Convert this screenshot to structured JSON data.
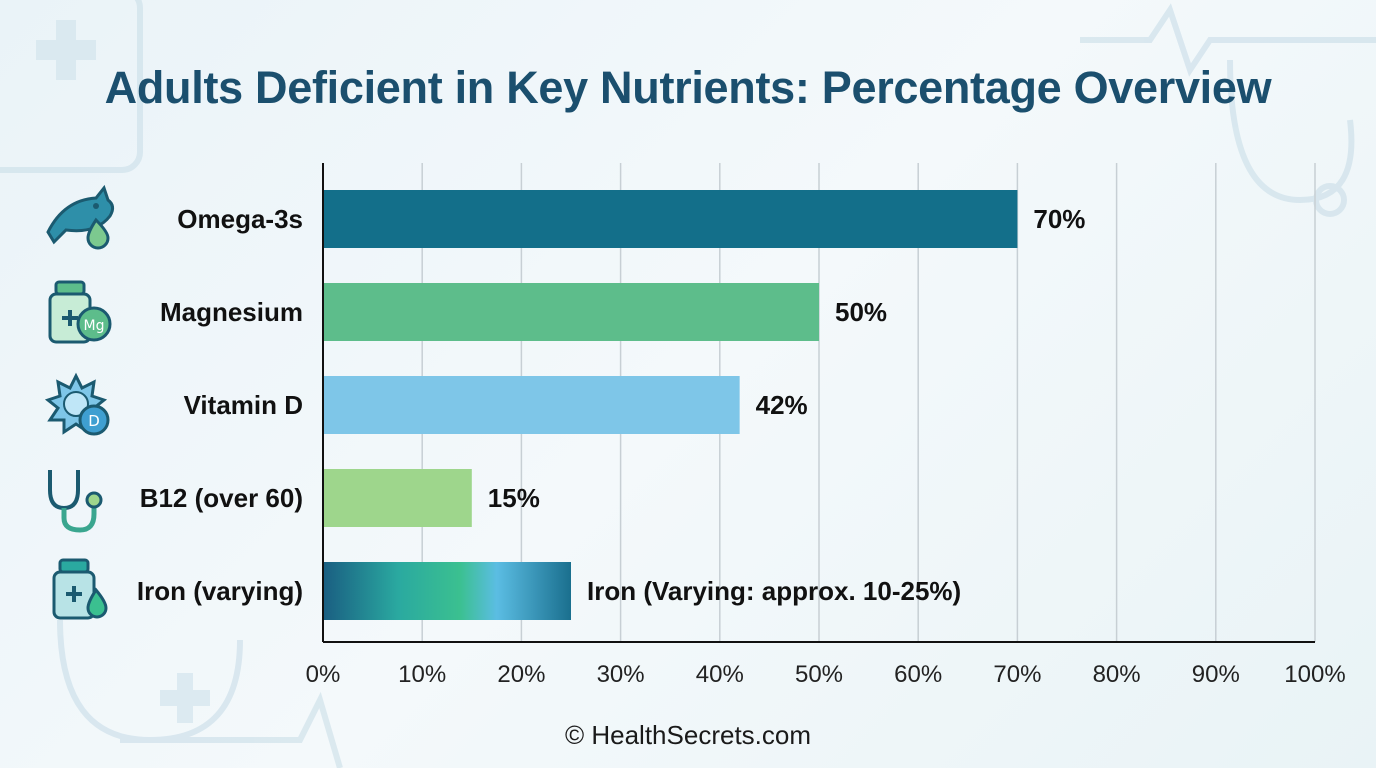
{
  "colors": {
    "title": "#1b4f6e",
    "omega": "#136f8a",
    "magnesium": "#5dbd8b",
    "vitamin_d": "#7ec6e8",
    "b12": "#9ed68c",
    "iron_gradient": [
      "#1a5f82",
      "#2aa9a0",
      "#3bc090",
      "#5bbde3",
      "#1a6f8e"
    ]
  },
  "chart_data": {
    "type": "bar",
    "orientation": "horizontal",
    "title": "Adults Deficient in Key Nutrients: Percentage Overview",
    "xlim": [
      0,
      100
    ],
    "x_ticks": [
      0,
      10,
      20,
      30,
      40,
      50,
      60,
      70,
      80,
      90,
      100
    ],
    "x_tick_labels": [
      "0%",
      "10%",
      "20%",
      "30%",
      "40%",
      "50%",
      "60%",
      "70%",
      "80%",
      "90%",
      "100%"
    ],
    "grid": true,
    "categories": [
      "Omega-3s",
      "Magnesium",
      "Vitamin D",
      "B12 (over 60)",
      "Iron (varying)"
    ],
    "values": [
      70,
      50,
      42,
      15,
      25
    ],
    "value_labels": [
      "70%",
      "50%",
      "42%",
      "15%",
      "Iron (Varying: approx. 10-25%)"
    ],
    "icons": [
      "fish-drop-icon",
      "magnesium-bottle-icon",
      "sun-vitamin-d-icon",
      "stethoscope-icon",
      "iron-bottle-icon"
    ]
  },
  "footer": "© HealthSecrets.com"
}
